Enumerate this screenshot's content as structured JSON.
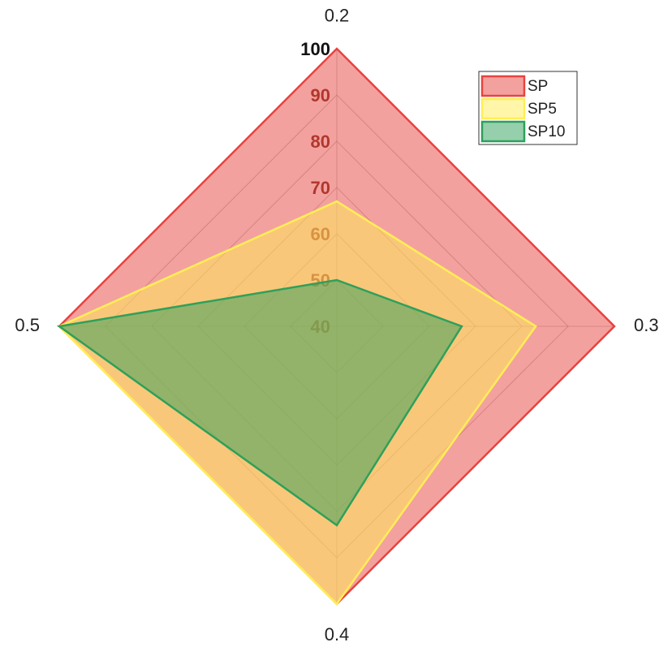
{
  "chart_data": {
    "type": "radar",
    "categories": [
      "0.2",
      "0.3",
      "0.4",
      "0.5"
    ],
    "series": [
      {
        "name": "SP",
        "color": "#e8433f",
        "values": [
          100,
          100,
          100,
          100
        ]
      },
      {
        "name": "SP5",
        "color": "#ffee55",
        "values": [
          67,
          83,
          100,
          100
        ]
      },
      {
        "name": "SP10",
        "color": "#2ea05a",
        "values": [
          50,
          67,
          83,
          100
        ]
      }
    ],
    "ylim": [
      40,
      100
    ],
    "yticks": [
      40,
      50,
      60,
      70,
      80,
      90,
      100
    ],
    "grid": true,
    "legend": "upper right"
  }
}
